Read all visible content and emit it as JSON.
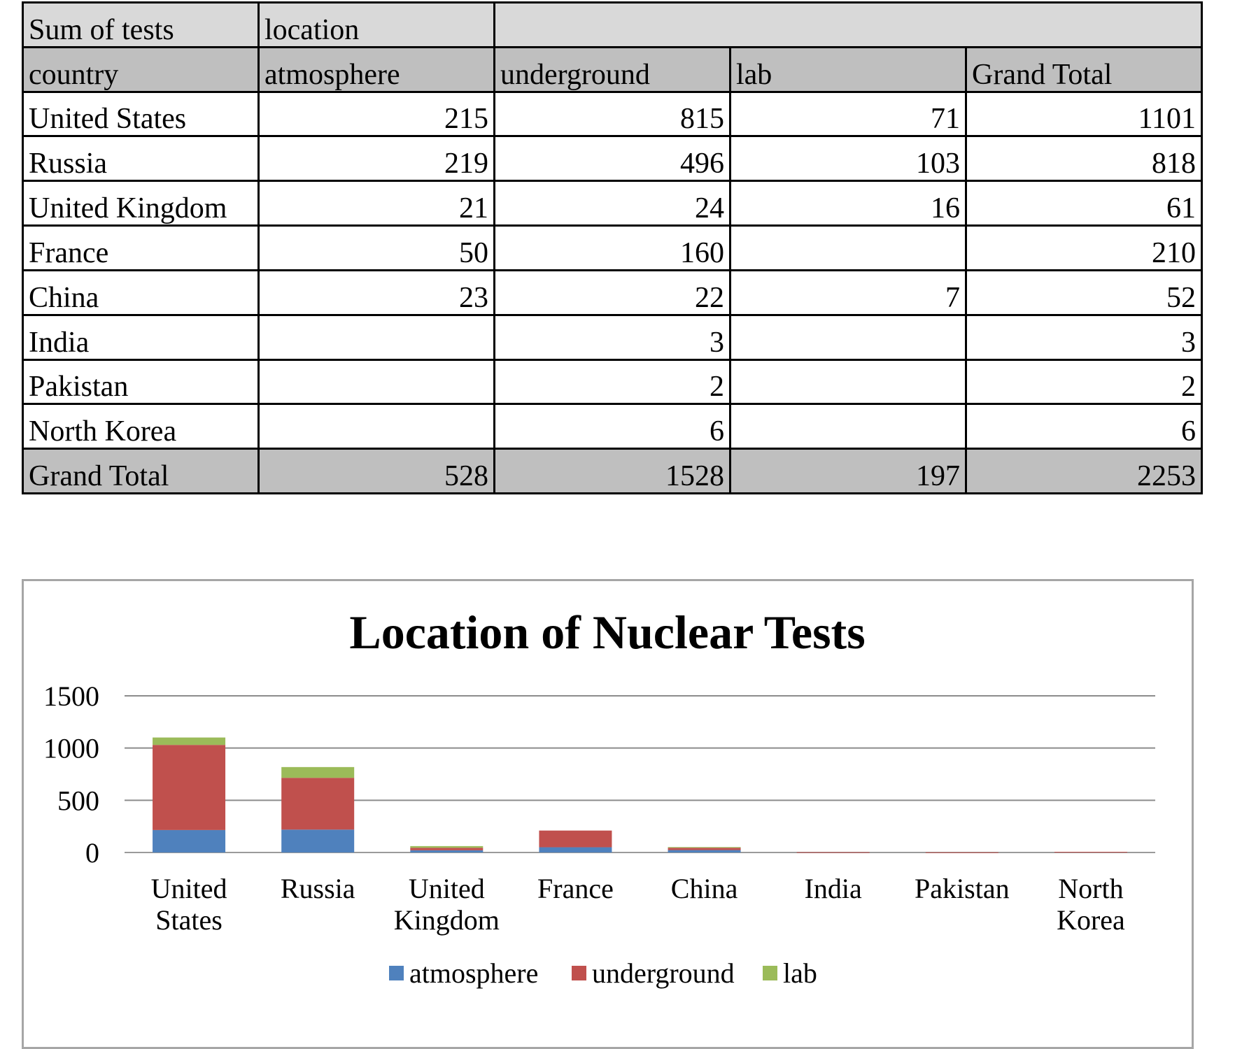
{
  "pivot": {
    "corner_label": "Sum of tests",
    "column_field": "location",
    "row_field": "country",
    "columns": [
      "atmosphere",
      "underground",
      "lab",
      "Grand Total"
    ],
    "rows": [
      {
        "country": "United States",
        "values": [
          "215",
          "815",
          "71",
          "1101"
        ]
      },
      {
        "country": "Russia",
        "values": [
          "219",
          "496",
          "103",
          "818"
        ]
      },
      {
        "country": "United Kingdom",
        "values": [
          "21",
          "24",
          "16",
          "61"
        ]
      },
      {
        "country": "France",
        "values": [
          "50",
          "160",
          "",
          "210"
        ]
      },
      {
        "country": "China",
        "values": [
          "23",
          "22",
          "7",
          "52"
        ]
      },
      {
        "country": "India",
        "values": [
          "",
          "3",
          "",
          "3"
        ]
      },
      {
        "country": "Pakistan",
        "values": [
          "",
          "2",
          "",
          "2"
        ]
      },
      {
        "country": "North Korea",
        "values": [
          "",
          "6",
          "",
          "6"
        ]
      }
    ],
    "grand_total": {
      "label": "Grand Total",
      "values": [
        "528",
        "1528",
        "197",
        "2253"
      ]
    }
  },
  "chart_data": {
    "type": "bar",
    "stacked": true,
    "title": "Location of Nuclear Tests",
    "categories": [
      [
        "United",
        "States"
      ],
      [
        "Russia"
      ],
      [
        "United",
        "Kingdom"
      ],
      [
        "France"
      ],
      [
        "China"
      ],
      [
        "India"
      ],
      [
        "Pakistan"
      ],
      [
        "North",
        "Korea"
      ]
    ],
    "series": [
      {
        "name": "atmosphere",
        "color": "#4f81bd",
        "values": [
          215,
          219,
          21,
          50,
          23,
          0,
          0,
          0
        ]
      },
      {
        "name": "underground",
        "color": "#c0504d",
        "values": [
          815,
          496,
          24,
          160,
          22,
          3,
          2,
          6
        ]
      },
      {
        "name": "lab",
        "color": "#9bbb59",
        "values": [
          71,
          103,
          16,
          0,
          7,
          0,
          0,
          0
        ]
      }
    ],
    "yticks": [
      "0",
      "500",
      "1000",
      "1500"
    ],
    "ylim": [
      0,
      1500
    ],
    "grid": true,
    "legend": "bottom"
  }
}
